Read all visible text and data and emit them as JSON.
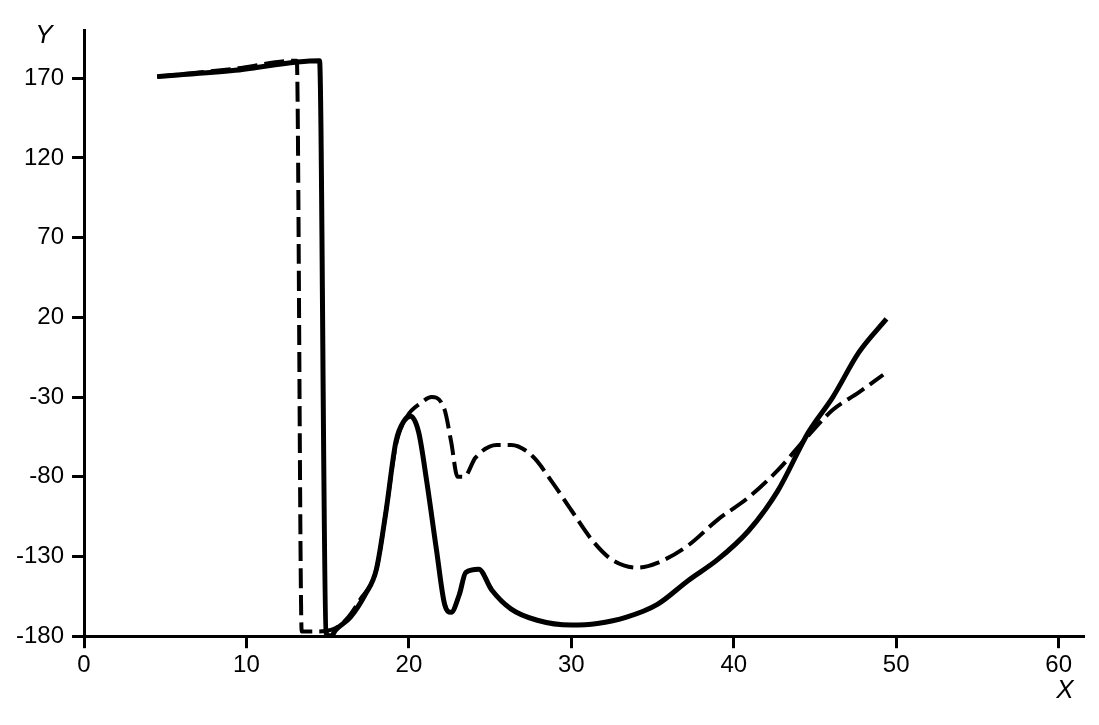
{
  "chart_data": {
    "type": "line",
    "xlabel": "X",
    "ylabel": "Y",
    "xlim": [
      0,
      61.5
    ],
    "ylim": [
      -180,
      200
    ],
    "xticks": [
      0,
      10,
      20,
      30,
      40,
      50,
      60
    ],
    "yticks": [
      -180,
      -130,
      -80,
      -30,
      20,
      70,
      120,
      170
    ],
    "grid": false,
    "legend": false,
    "marker": "none",
    "series": [
      {
        "color": "#000000",
        "line_style": "solid",
        "x": [
          4.5,
          9.3,
          14.5,
          14.9,
          15.2,
          15.5,
          16.4,
          17.3,
          18,
          18.6,
          19.2,
          19.7,
          20.1,
          20.6,
          21.1,
          21.7,
          22.2,
          22.6,
          23.1,
          23.5,
          24.3,
          25.1,
          26.3,
          27.9,
          30,
          31.6,
          33.4,
          35.3,
          37.2,
          39,
          40.9,
          42.7,
          44.6,
          46.1,
          47.7,
          49.4
        ],
        "values": [
          171,
          175,
          181,
          -178,
          -180,
          -176,
          -168,
          -154,
          -138,
          -101,
          -58,
          -45,
          -42,
          -52,
          -83,
          -126,
          -160,
          -165,
          -154,
          -140,
          -138,
          -151,
          -163,
          -170,
          -173,
          -172,
          -168,
          -160,
          -145,
          -132,
          -114,
          -89,
          -52,
          -30,
          -2,
          19
        ]
      },
      {
        "color": "#000000",
        "line_style": "dashed",
        "x": [
          4.5,
          9.3,
          13.1,
          13.4,
          14.2,
          15.2,
          16.1,
          17,
          18,
          18.6,
          19.2,
          19.9,
          20.7,
          21.4,
          22.2,
          22.6,
          23,
          23.4,
          24.1,
          25.4,
          26.3,
          27.6,
          28.8,
          30,
          31.3,
          32.5,
          34.1,
          35.3,
          37.2,
          39,
          40.9,
          42.7,
          44.6,
          46.1,
          47.7,
          49.2
        ],
        "values": [
          171,
          176,
          181,
          -177,
          -177,
          -176,
          -170,
          -157,
          -138,
          -101,
          -60,
          -42,
          -34,
          -30,
          -38,
          -58,
          -80,
          -80,
          -68,
          -60,
          -60,
          -67,
          -83,
          -101,
          -120,
          -132,
          -137,
          -134,
          -123,
          -107,
          -93,
          -76,
          -54,
          -38,
          -27,
          -16
        ]
      }
    ]
  }
}
